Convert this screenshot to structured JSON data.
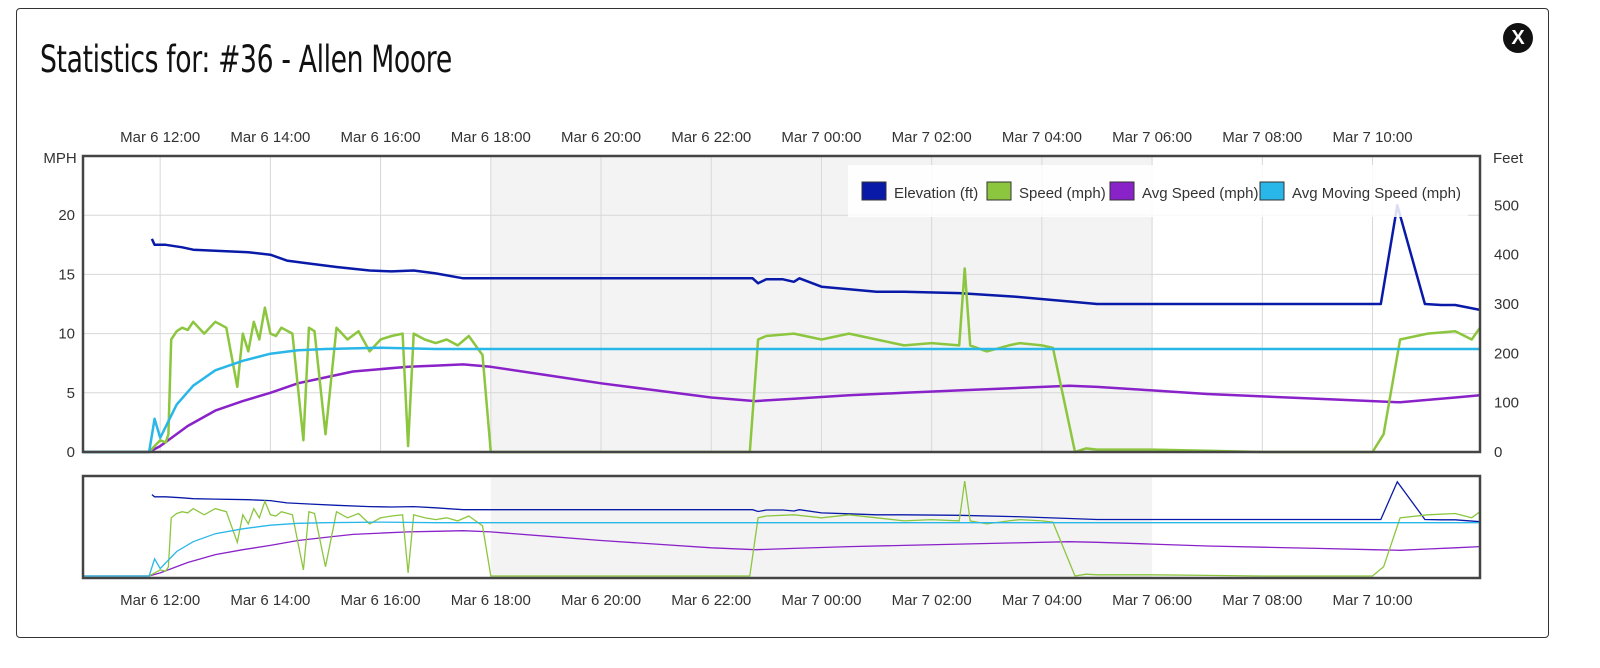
{
  "title": "Statistics for: #36 - Allen Moore",
  "close_label": "X",
  "colors": {
    "elevation": "#0a1aa8",
    "speed": "#8cc63f",
    "avg_speed": "#8a22c9",
    "avg_moving": "#29b6e8",
    "shade": "#f3f3f3"
  },
  "chart_data": {
    "type": "line",
    "x_tick_labels": [
      "Mar 6 12:00",
      "Mar 6 14:00",
      "Mar 6 16:00",
      "Mar 6 18:00",
      "Mar 6 20:00",
      "Mar 6 22:00",
      "Mar 7 00:00",
      "Mar 7 02:00",
      "Mar 7 04:00",
      "Mar 7 06:00",
      "Mar 7 08:00",
      "Mar 7 10:00"
    ],
    "x_tick_hours": [
      12,
      14,
      16,
      18,
      20,
      22,
      24,
      26,
      28,
      30,
      32,
      34
    ],
    "x_range_hours": [
      10.6,
      35.95
    ],
    "shaded_range_hours": [
      18,
      30
    ],
    "left_axis": {
      "label": "MPH",
      "ticks": [
        0,
        5,
        10,
        15,
        20
      ],
      "range": [
        0,
        25
      ]
    },
    "right_axis": {
      "label": "Feet",
      "ticks": [
        0,
        100,
        200,
        300,
        400,
        500
      ],
      "range": [
        0,
        600
      ]
    },
    "legend": [
      "Elevation (ft)",
      "Speed (mph)",
      "Avg Speed (mph)",
      "Avg Moving Speed (mph)"
    ],
    "series": [
      {
        "name": "Elevation (ft)",
        "axis": "right",
        "x": [
          11.85,
          11.9,
          12.1,
          12.4,
          12.6,
          13.0,
          13.6,
          14.0,
          14.3,
          14.7,
          15.2,
          15.8,
          16.2,
          16.6,
          17.0,
          17.5,
          18.0,
          19.0,
          20.0,
          21.0,
          22.0,
          22.75,
          22.85,
          23.0,
          23.3,
          23.5,
          23.6,
          24.0,
          24.5,
          25.0,
          25.5,
          26.5,
          27.5,
          28.5,
          29.0,
          30.0,
          31.0,
          32.0,
          33.0,
          34.15,
          34.45,
          34.95,
          35.25,
          35.5,
          35.95
        ],
        "y": [
          432,
          420,
          420,
          415,
          410,
          408,
          405,
          400,
          388,
          382,
          375,
          368,
          366,
          368,
          362,
          352,
          352,
          352,
          352,
          352,
          352,
          352,
          342,
          350,
          350,
          345,
          352,
          335,
          330,
          325,
          325,
          322,
          315,
          305,
          300,
          300,
          300,
          300,
          300,
          300,
          500,
          300,
          298,
          298,
          288
        ]
      },
      {
        "name": "Speed (mph)",
        "axis": "left",
        "x": [
          10.6,
          11.8,
          11.9,
          12.0,
          12.1,
          12.15,
          12.2,
          12.3,
          12.4,
          12.5,
          12.6,
          12.8,
          13.0,
          13.2,
          13.4,
          13.5,
          13.6,
          13.7,
          13.8,
          13.9,
          14.0,
          14.1,
          14.2,
          14.4,
          14.6,
          14.7,
          14.8,
          15.0,
          15.2,
          15.4,
          15.6,
          15.8,
          16.0,
          16.2,
          16.4,
          16.5,
          16.6,
          16.8,
          17.0,
          17.2,
          17.4,
          17.6,
          17.8,
          17.85,
          18.0,
          19.0,
          20.0,
          21.0,
          22.0,
          22.7,
          22.85,
          23.0,
          23.5,
          24.0,
          24.5,
          25.0,
          25.5,
          26.0,
          26.5,
          26.6,
          26.7,
          27.0,
          27.4,
          27.6,
          28.0,
          28.2,
          28.6,
          28.8,
          29.0,
          30.0,
          31.0,
          32.0,
          33.0,
          34.0,
          34.2,
          34.5,
          35.0,
          35.5,
          35.8,
          35.95
        ],
        "y": [
          0,
          0,
          0.5,
          1,
          0.8,
          1.5,
          9.5,
          10.2,
          10.5,
          10.3,
          11,
          10,
          11,
          10.5,
          5.5,
          10,
          8.5,
          11,
          9.5,
          12.2,
          10,
          9.8,
          10.5,
          10,
          1,
          10.5,
          10.2,
          1.5,
          10.5,
          9.5,
          10.2,
          8.5,
          9.5,
          9.8,
          10,
          0.5,
          10,
          9.5,
          9.2,
          9.5,
          9.0,
          9.8,
          8.5,
          8.2,
          0,
          0,
          0,
          0,
          0,
          0,
          9.5,
          9.8,
          10,
          9.5,
          10,
          9.5,
          9.0,
          9.2,
          9.0,
          15.5,
          9,
          8.5,
          9.0,
          9.2,
          9.0,
          8.8,
          0,
          0.3,
          0.2,
          0.2,
          0.1,
          0,
          0,
          0,
          1.5,
          9.5,
          10,
          10.2,
          9.5,
          10.5
        ]
      },
      {
        "name": "Avg Speed (mph)",
        "axis": "left",
        "x": [
          10.6,
          11.8,
          12.0,
          12.5,
          13.0,
          13.5,
          14.0,
          14.5,
          15.0,
          15.5,
          16.0,
          16.5,
          17.0,
          17.5,
          18.0,
          19.0,
          20.0,
          21.0,
          22.0,
          22.8,
          23.5,
          24.5,
          25.5,
          26.5,
          27.5,
          28.5,
          29.0,
          30.0,
          31.0,
          32.0,
          33.0,
          34.0,
          34.5,
          35.0,
          35.5,
          35.95
        ],
        "y": [
          0,
          0,
          0.5,
          2.2,
          3.5,
          4.3,
          5.0,
          5.8,
          6.3,
          6.8,
          7.0,
          7.2,
          7.3,
          7.4,
          7.2,
          6.5,
          5.8,
          5.2,
          4.6,
          4.3,
          4.5,
          4.8,
          5.0,
          5.2,
          5.4,
          5.6,
          5.5,
          5.2,
          4.9,
          4.7,
          4.5,
          4.3,
          4.2,
          4.4,
          4.6,
          4.8
        ]
      },
      {
        "name": "Avg Moving Speed (mph)",
        "axis": "left",
        "x": [
          10.6,
          11.8,
          11.9,
          12.0,
          12.3,
          12.6,
          13.0,
          13.5,
          14.0,
          14.5,
          15.0,
          16.0,
          17.0,
          18.0,
          20.0,
          22.0,
          24.0,
          26.0,
          28.0,
          30.0,
          32.0,
          34.0,
          35.0,
          35.95
        ],
        "y": [
          0,
          0,
          2.8,
          1.2,
          4.0,
          5.6,
          6.9,
          7.7,
          8.3,
          8.6,
          8.7,
          8.8,
          8.7,
          8.7,
          8.7,
          8.7,
          8.7,
          8.7,
          8.7,
          8.7,
          8.7,
          8.7,
          8.7,
          8.7
        ]
      }
    ]
  }
}
